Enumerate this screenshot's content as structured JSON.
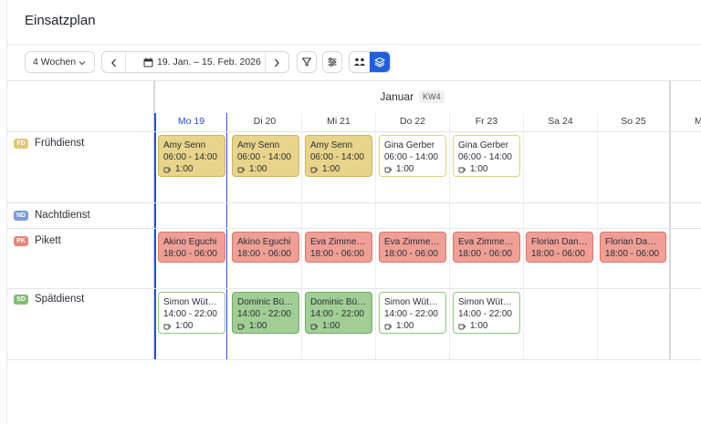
{
  "title": "Einsatzplan",
  "toolbar": {
    "range": "4 Wochen",
    "date_range": "19. Jan. – 15. Feb. 2026",
    "icons": {
      "range_chevron": "chevron-down-icon",
      "prev": "chevron-left-icon",
      "next": "chevron-right-icon",
      "calendar": "calendar-icon",
      "filter": "filter-icon",
      "settings": "sliders-icon",
      "group_people": "people-icon",
      "group_layers": "layers-icon"
    },
    "accent": "#1f5fe0"
  },
  "calendar": {
    "month": "Januar",
    "week": "KW4",
    "days": [
      {
        "label": "Mo 19",
        "today": true
      },
      {
        "label": "Di 20",
        "today": false
      },
      {
        "label": "Mi 21",
        "today": false
      },
      {
        "label": "Do 22",
        "today": false
      },
      {
        "label": "Fr 23",
        "today": false
      },
      {
        "label": "Sa 24",
        "today": false
      },
      {
        "label": "So 25",
        "today": false
      },
      {
        "label": "M",
        "today": false
      }
    ],
    "rows": [
      {
        "abbr": "FD",
        "name": "Frühdienst",
        "color": "#e2c870"
      },
      {
        "abbr": "ND",
        "name": "Nachtdienst",
        "color": "#7b9be0"
      },
      {
        "abbr": "PK",
        "name": "Pikett",
        "color": "#ea8478"
      },
      {
        "abbr": "SD",
        "name": "Spätdienst",
        "color": "#7fbf70"
      }
    ]
  },
  "shifts": {
    "fd": [
      {
        "who": "Amy Senn",
        "time": "06:00 - 14:00",
        "brk": "1:00"
      },
      {
        "who": "Amy Senn",
        "time": "06:00 - 14:00",
        "brk": "1:00"
      },
      {
        "who": "Amy Senn",
        "time": "06:00 - 14:00",
        "brk": "1:00"
      },
      {
        "who": "Gina Gerber",
        "time": "06:00 - 14:00",
        "brk": "1:00"
      },
      {
        "who": "Gina Gerber",
        "time": "06:00 - 14:00",
        "brk": "1:00"
      }
    ],
    "pk": [
      {
        "who": "Akino Eguchi",
        "time": "18:00 - 06:00"
      },
      {
        "who": "Akino Eguchi",
        "time": "18:00 - 06:00"
      },
      {
        "who": "Eva Zimmer…",
        "time": "18:00 - 06:00"
      },
      {
        "who": "Eva Zimmer…",
        "time": "18:00 - 06:00"
      },
      {
        "who": "Eva Zimmer…",
        "time": "18:00 - 06:00"
      },
      {
        "who": "Florian Dan…",
        "time": "18:00 - 06:00"
      },
      {
        "who": "Florian Dan…",
        "time": "18:00 - 06:00"
      }
    ],
    "sd": [
      {
        "who": "Simon Wüth…",
        "time": "14:00 - 22:00",
        "brk": "1:00"
      },
      {
        "who": "Dominic Büh…",
        "time": "14:00 - 22:00",
        "brk": "1:00"
      },
      {
        "who": "Dominic Büh…",
        "time": "14:00 - 22:00",
        "brk": "1:00"
      },
      {
        "who": "Simon Wüth…",
        "time": "14:00 - 22:00",
        "brk": "1:00"
      },
      {
        "who": "Simon Wüth…",
        "time": "14:00 - 22:00",
        "brk": "1:00"
      }
    ]
  }
}
